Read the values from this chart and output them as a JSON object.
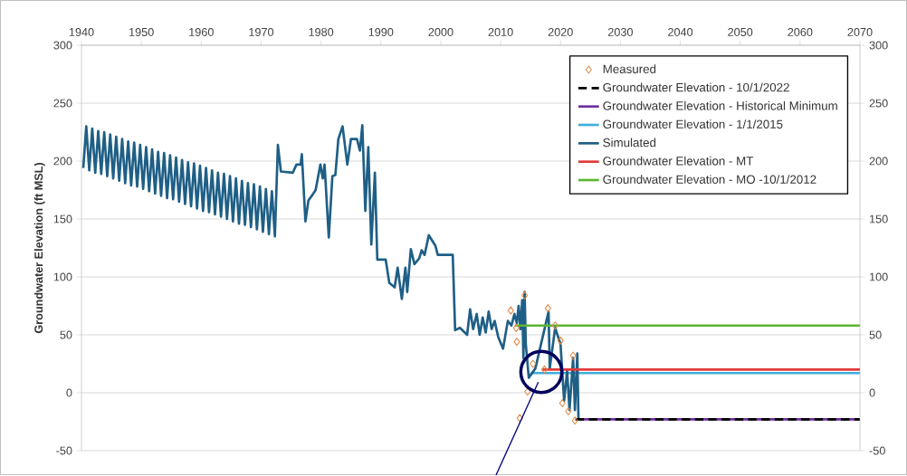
{
  "chart_data": {
    "type": "line",
    "ylabel": "Groundwater Elevation (ft MSL)",
    "xlim": [
      1940,
      2070
    ],
    "xticks": [
      1940,
      1950,
      1960,
      1970,
      1980,
      1990,
      2000,
      2010,
      2020,
      2030,
      2040,
      2050,
      2060,
      2070
    ],
    "ylim": [
      -50,
      300
    ],
    "yticks": [
      -50,
      0,
      50,
      100,
      150,
      200,
      250,
      300
    ],
    "y2lim": [
      -50,
      300
    ],
    "y2ticks": [
      -50,
      0,
      50,
      100,
      150,
      200,
      250,
      300
    ],
    "grid": "y",
    "legend": "top right",
    "series": [
      {
        "name": "Measured",
        "type": "scatter",
        "marker": "diamond",
        "color": "#e08a4a",
        "x": [
          2011.7,
          2012.6,
          2012.7,
          2013.2,
          2014.0,
          2014.5,
          2015.4,
          2017.3,
          2017.9,
          2019.1,
          2020.0,
          2020.3,
          2021.3,
          2022.1,
          2022.4
        ],
        "values": [
          71,
          56,
          44,
          -22,
          84,
          1,
          25,
          20,
          73,
          58,
          45,
          -9,
          -16,
          32,
          -24
        ]
      },
      {
        "name": "Groundwater Elevation - 10/1/2022",
        "line_style": "dashed",
        "color": "#000000",
        "x": [
          2022.5,
          2070
        ],
        "values": [
          -23,
          -23
        ]
      },
      {
        "name": "Groundwater Elevation - Historical Minimum",
        "color": "#7030a0",
        "x": [
          2022.5,
          2070
        ],
        "values": [
          -23,
          -23
        ]
      },
      {
        "name": "Groundwater Elevation - 1/1/2015",
        "color": "#3eb0dc",
        "x": [
          2015,
          2070
        ],
        "values": [
          17,
          17
        ]
      },
      {
        "name": "Simulated",
        "color": "#1f5f86",
        "x": [
          1940.3,
          1940.8,
          1941.3,
          1941.8,
          1942.3,
          1942.8,
          1943.3,
          1943.8,
          1944.3,
          1944.8,
          1945.3,
          1945.8,
          1946.3,
          1946.8,
          1947.3,
          1947.8,
          1948.3,
          1948.8,
          1949.3,
          1949.8,
          1950.3,
          1950.8,
          1951.3,
          1951.8,
          1952.3,
          1952.8,
          1953.3,
          1953.8,
          1954.3,
          1954.8,
          1955.3,
          1955.8,
          1956.3,
          1956.8,
          1957.3,
          1957.8,
          1958.3,
          1958.8,
          1959.3,
          1959.8,
          1960.3,
          1960.8,
          1961.3,
          1961.8,
          1962.3,
          1962.8,
          1963.3,
          1963.8,
          1964.3,
          1964.8,
          1965.3,
          1965.8,
          1966.3,
          1966.8,
          1967.3,
          1967.8,
          1968.3,
          1968.8,
          1969.3,
          1969.8,
          1970.3,
          1970.8,
          1971.3,
          1971.8,
          1972.3,
          1972.8,
          1973.3,
          1975.3,
          1975.9,
          1976.6,
          1976.8,
          1977.4,
          1977.9,
          1978.6,
          1979.1,
          1979.9,
          1980.3,
          1980.6,
          1981.3,
          1981.9,
          1982.4,
          1982.9,
          1983.6,
          1984.4,
          1985.0,
          1986.0,
          1986.5,
          1986.9,
          1987.4,
          1987.9,
          1988.4,
          1989.0,
          1989.4,
          1990.8,
          1991.4,
          1992.3,
          1992.8,
          1993.5,
          1994.1,
          1994.4,
          1995.0,
          1995.6,
          1996.4,
          1996.8,
          1997.3,
          1998.0,
          1999.1,
          1999.5,
          2002.0,
          2002.4,
          2003.2,
          2004.4,
          2004.9,
          2005.4,
          2006.0,
          2006.5,
          2007.0,
          2007.5,
          2008.0,
          2008.5,
          2009.0,
          2009.6,
          2010.4,
          2011.2,
          2011.8,
          2012.3,
          2012.7,
          2013.0,
          2013.3,
          2013.6,
          2013.8,
          2014.0,
          2014.2,
          2014.7,
          2015.8,
          2018.0,
          2018.2,
          2019.1,
          2020.0,
          2020.6,
          2021.1,
          2021.5,
          2022.1,
          2022.4,
          2022.8,
          2023.0
        ],
        "values": [
          194,
          230,
          192,
          228,
          190,
          226,
          189,
          225,
          187,
          223,
          185,
          221,
          183,
          219,
          181,
          217,
          179,
          216,
          178,
          214,
          176,
          212,
          174,
          210,
          172,
          208,
          170,
          207,
          168,
          205,
          167,
          203,
          165,
          201,
          163,
          199,
          161,
          198,
          159,
          196,
          157,
          194,
          156,
          192,
          154,
          190,
          152,
          189,
          150,
          187,
          148,
          185,
          146,
          183,
          145,
          181,
          143,
          180,
          141,
          178,
          139,
          176,
          137,
          174,
          135,
          214,
          191,
          190,
          197,
          197,
          206,
          148,
          166,
          171,
          175,
          197,
          185,
          197,
          134,
          187,
          188,
          219,
          230,
          197,
          219,
          219,
          209,
          231,
          157,
          212,
          128,
          190,
          115,
          115,
          95,
          91,
          108,
          81,
          108,
          87,
          124,
          111,
          116,
          123,
          119,
          136,
          127,
          119,
          119,
          54,
          56,
          50,
          72,
          55,
          68,
          50,
          65,
          52,
          70,
          55,
          62,
          48,
          38,
          62,
          58,
          68,
          60,
          75,
          55,
          80,
          30,
          87,
          42,
          13,
          21,
          70,
          21,
          56,
          42,
          -7,
          19,
          -15,
          30,
          -15,
          34,
          -24
        ]
      },
      {
        "name": "Groundwater Elevation - MT",
        "color": "#e03a3a",
        "x": [
          2017,
          2070
        ],
        "values": [
          20,
          20
        ]
      },
      {
        "name": "Groundwater Elevation - MO -10/1/2012",
        "color": "#5cb531",
        "x": [
          2012.4,
          2070
        ],
        "values": [
          58,
          58
        ]
      }
    ]
  }
}
